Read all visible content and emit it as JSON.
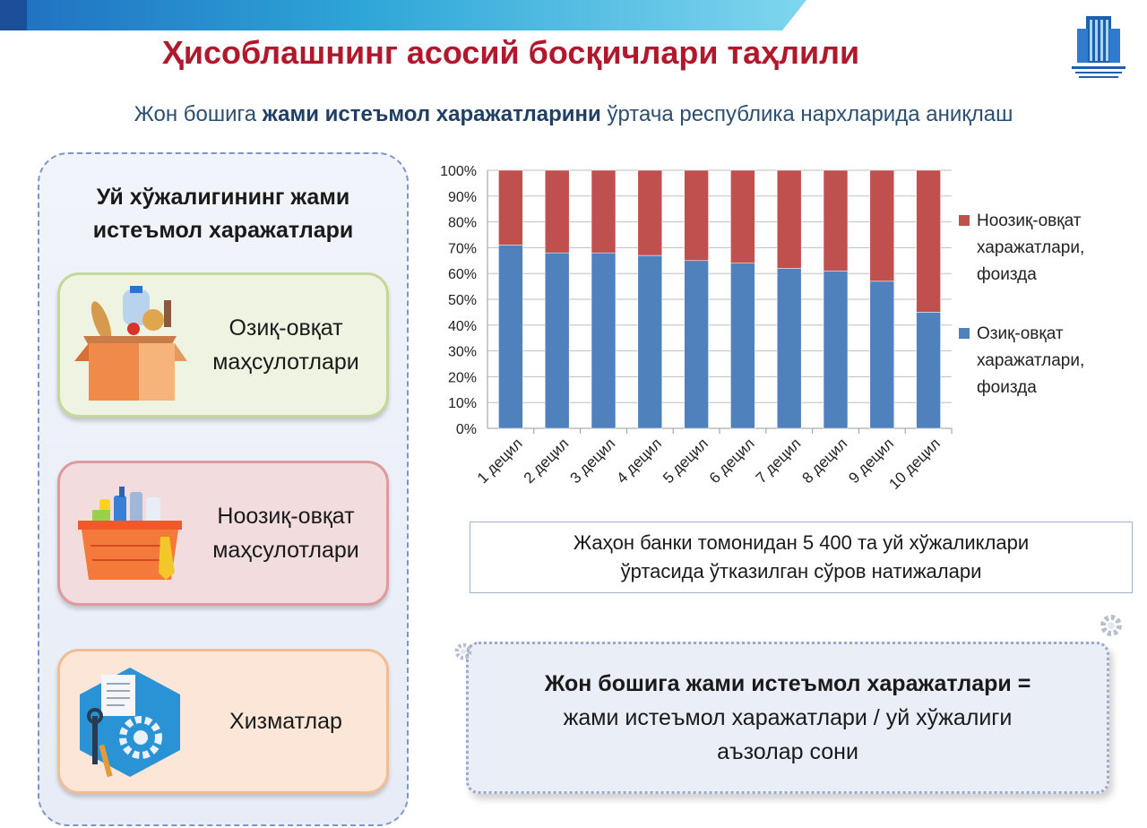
{
  "header": {
    "title": "Ҳисоблашнинг асосий босқичлари таҳлили",
    "subtitle_part1": "Жон бошига ",
    "subtitle_bold": "жами истеъмол харажатларини",
    "subtitle_part2": " ўртача республика нархларида аниқлаш"
  },
  "left_panel": {
    "heading_line1": "Уй хўжалигининг жами",
    "heading_line2": "истеъмол харажатлари",
    "cards": [
      {
        "line1": "Озиқ-овқат",
        "line2": "маҳсулотлари",
        "icon": "food-box-icon"
      },
      {
        "line1": "Ноозиқ-овқат",
        "line2": "маҳсулотлари",
        "icon": "cleaning-basket-icon"
      },
      {
        "line1": "Хизматлар",
        "line2": "",
        "icon": "services-tools-icon"
      }
    ]
  },
  "chart_data": {
    "type": "bar",
    "stacked": true,
    "percent_stacked": true,
    "categories": [
      "1 децил",
      "2 децил",
      "3 децил",
      "4 децил",
      "5 децил",
      "6 децил",
      "7 децил",
      "8 децил",
      "9 децил",
      "10 децил"
    ],
    "series": [
      {
        "name": "Озиқ-овқат харажатлари, фоизда",
        "color": "#4f81bd",
        "values": [
          71,
          68,
          68,
          67,
          65,
          64,
          62,
          61,
          57,
          45
        ]
      },
      {
        "name": "Ноозиқ-овқат харажатлари, фоизда",
        "color": "#c0504d",
        "values": [
          29,
          32,
          32,
          33,
          35,
          36,
          38,
          39,
          43,
          55
        ]
      }
    ],
    "yticks": [
      "0%",
      "10%",
      "20%",
      "30%",
      "40%",
      "50%",
      "60%",
      "70%",
      "80%",
      "90%",
      "100%"
    ],
    "ylim": [
      0,
      100
    ],
    "grid": true,
    "legend_position": "right",
    "legend": [
      {
        "lines": [
          "Ноозиқ-овқат",
          "харажатлари,",
          "фоизда"
        ],
        "color": "#c0504d"
      },
      {
        "lines": [
          "Озиқ-овқат",
          "харажатлари,",
          "фоизда"
        ],
        "color": "#4f81bd"
      }
    ]
  },
  "source": {
    "line1": "Жаҳон банки томонидан 5 400 та уй хўжаликлари",
    "line2": "ўртасида ўтказилган сўров натижалари"
  },
  "formula": {
    "line1": "Жон бошига жами истеъмол харажатлари =",
    "line2": "жами истеъмол харажатлари / уй хўжалиги",
    "line3": "аъзолар сони"
  }
}
